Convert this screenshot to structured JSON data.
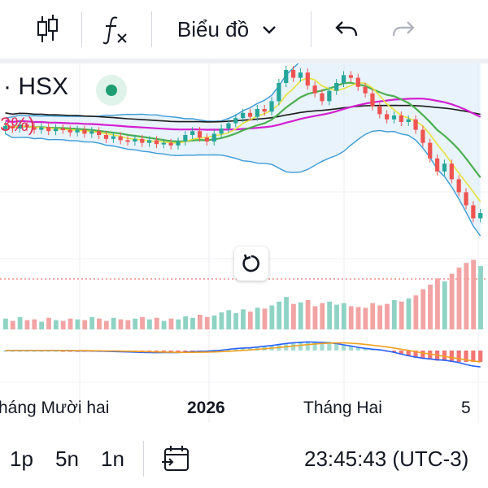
{
  "toolbar": {
    "chart_type_label": "Biểu đồ",
    "icons": [
      "candlestick-icon",
      "formula-icon",
      "chevron-down-icon",
      "undo-icon",
      "redo-icon"
    ]
  },
  "legend": {
    "symbol": "· HSX",
    "change_pct": "3%)",
    "status_color": "#1f9e73"
  },
  "chart_data": {
    "type": "candlestick",
    "x_labels": [
      "háng Mười hai",
      "2026",
      "Tháng Hai",
      "5"
    ],
    "colors": {
      "up": "#26a69a",
      "down": "#ef5350",
      "volume_up": "#8fd3c4",
      "volume_down": "#f2a3a3"
    },
    "candles": [
      {
        "o": 44,
        "c": 47
      },
      {
        "o": 47,
        "c": 45
      },
      {
        "o": 45,
        "c": 48
      },
      {
        "o": 48,
        "c": 46
      },
      {
        "o": 46,
        "c": 44
      },
      {
        "o": 44,
        "c": 46
      },
      {
        "o": 46,
        "c": 43
      },
      {
        "o": 43,
        "c": 45
      },
      {
        "o": 45,
        "c": 44
      },
      {
        "o": 44,
        "c": 42
      },
      {
        "o": 42,
        "c": 44
      },
      {
        "o": 44,
        "c": 41
      },
      {
        "o": 41,
        "c": 43
      },
      {
        "o": 43,
        "c": 40
      },
      {
        "o": 40,
        "c": 37
      },
      {
        "o": 37,
        "c": 39
      },
      {
        "o": 39,
        "c": 36
      },
      {
        "o": 36,
        "c": 35
      },
      {
        "o": 35,
        "c": 37
      },
      {
        "o": 37,
        "c": 34
      },
      {
        "o": 34,
        "c": 36
      },
      {
        "o": 36,
        "c": 33
      },
      {
        "o": 33,
        "c": 34
      },
      {
        "o": 34,
        "c": 32
      },
      {
        "o": 32,
        "c": 35
      },
      {
        "o": 35,
        "c": 40
      },
      {
        "o": 40,
        "c": 43
      },
      {
        "o": 43,
        "c": 38
      },
      {
        "o": 38,
        "c": 35
      },
      {
        "o": 35,
        "c": 41
      },
      {
        "o": 41,
        "c": 45
      },
      {
        "o": 45,
        "c": 49
      },
      {
        "o": 49,
        "c": 53
      },
      {
        "o": 53,
        "c": 57
      },
      {
        "o": 57,
        "c": 54
      },
      {
        "o": 54,
        "c": 60
      },
      {
        "o": 60,
        "c": 58
      },
      {
        "o": 58,
        "c": 66
      },
      {
        "o": 66,
        "c": 80
      },
      {
        "o": 80,
        "c": 90
      },
      {
        "o": 90,
        "c": 84
      },
      {
        "o": 84,
        "c": 88
      },
      {
        "o": 88,
        "c": 78
      },
      {
        "o": 78,
        "c": 72
      },
      {
        "o": 72,
        "c": 66
      },
      {
        "o": 66,
        "c": 74
      },
      {
        "o": 74,
        "c": 80
      },
      {
        "o": 80,
        "c": 86
      },
      {
        "o": 86,
        "c": 84
      },
      {
        "o": 84,
        "c": 77
      },
      {
        "o": 77,
        "c": 72
      },
      {
        "o": 72,
        "c": 62
      },
      {
        "o": 62,
        "c": 56
      },
      {
        "o": 56,
        "c": 52
      },
      {
        "o": 52,
        "c": 55
      },
      {
        "o": 55,
        "c": 50
      },
      {
        "o": 50,
        "c": 52
      },
      {
        "o": 52,
        "c": 44
      },
      {
        "o": 44,
        "c": 34
      },
      {
        "o": 34,
        "c": 22
      },
      {
        "o": 22,
        "c": 12
      },
      {
        "o": 12,
        "c": 18
      },
      {
        "o": 18,
        "c": 6
      },
      {
        "o": 6,
        "c": -4
      },
      {
        "o": -4,
        "c": -14
      },
      {
        "o": -14,
        "c": -24
      },
      {
        "o": -24,
        "c": -20
      }
    ],
    "volumes": [
      14,
      11,
      16,
      12,
      13,
      10,
      15,
      12,
      11,
      14,
      13,
      12,
      16,
      14,
      11,
      15,
      13,
      12,
      14,
      16,
      13,
      15,
      11,
      14,
      13,
      17,
      15,
      19,
      16,
      18,
      22,
      25,
      21,
      26,
      23,
      28,
      27,
      31,
      36,
      42,
      33,
      35,
      38,
      30,
      34,
      36,
      32,
      34,
      30,
      29,
      28,
      34,
      31,
      33,
      38,
      36,
      40,
      44,
      52,
      58,
      66,
      62,
      72,
      80,
      86,
      90,
      82
    ]
  },
  "bottombar": {
    "interval_1": "1p",
    "interval_2": "5n",
    "interval_3": "1n",
    "time": "23:45:43 (UTC-3)",
    "icons": [
      "calendar-goto-icon"
    ]
  }
}
